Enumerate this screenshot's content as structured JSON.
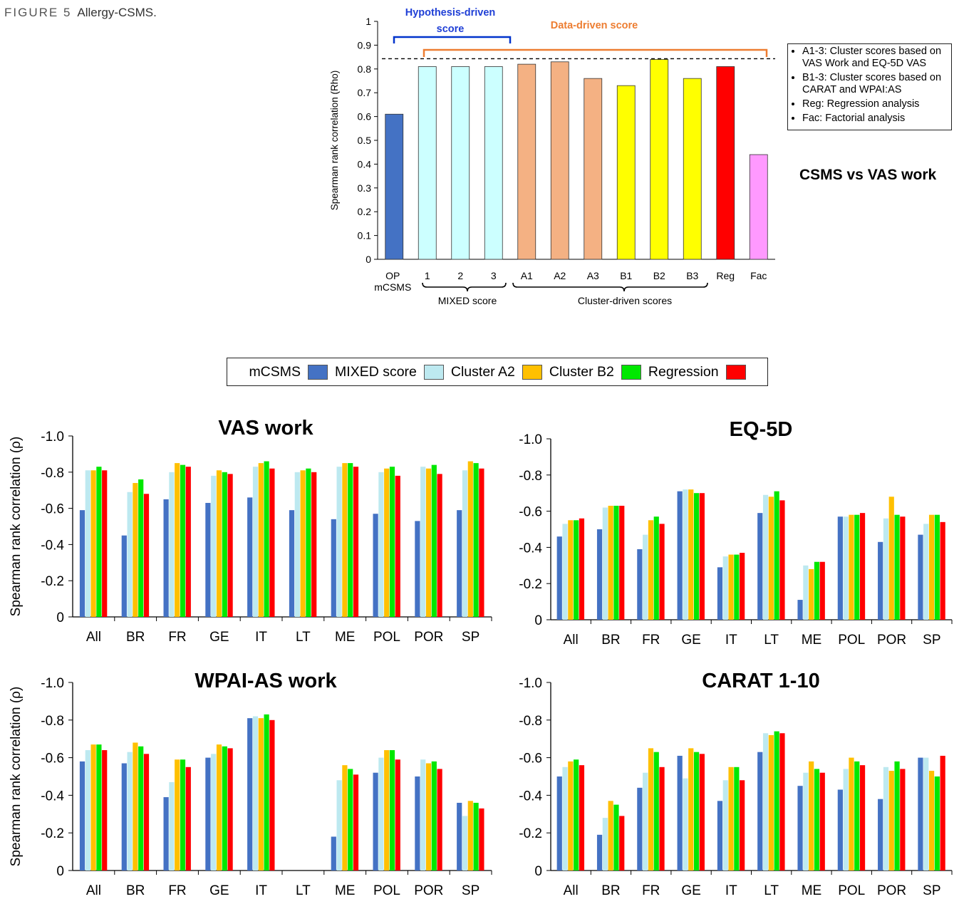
{
  "caption": {
    "label": "FIGURE 5",
    "text": "Allergy-CSMS."
  },
  "top_chart": {
    "ylabel": "Spearman rank correlation (Rho)",
    "yticks": [
      "0",
      "0.1",
      "0.2",
      "0.3",
      "0.4",
      "0.5",
      "0.6",
      "0.7",
      "0.8",
      "0.9",
      "1"
    ],
    "categories": [
      "OP\nmCSMS",
      "1",
      "2",
      "3",
      "A1",
      "A2",
      "A3",
      "B1",
      "B2",
      "B3",
      "Reg",
      "Fac"
    ],
    "values": [
      0.61,
      0.81,
      0.81,
      0.81,
      0.82,
      0.83,
      0.76,
      0.73,
      0.84,
      0.76,
      0.81,
      0.44
    ],
    "colors": [
      "#4472c4",
      "#ccffff",
      "#ccffff",
      "#ccffff",
      "#f4b183",
      "#f4b183",
      "#f4b183",
      "#ffff00",
      "#ffff00",
      "#ffff00",
      "#ff0000",
      "#ff99ff"
    ],
    "reference_line": 0.843,
    "hypothesis_label_line1": "Hypothesis-driven",
    "hypothesis_label_line2": "score",
    "data_label": "Data-driven score",
    "mixed_group_label": "MIXED score",
    "cluster_group_label": "Cluster-driven scores",
    "legend_items": [
      "A1-3: Cluster scores based on VAS Work and EQ-5D VAS",
      "B1-3: Cluster scores based on CARAT and WPAI:AS",
      "Reg: Regression analysis",
      "Fac: Factorial analysis"
    ],
    "subtitle": "CSMS vs VAS work"
  },
  "legend": {
    "items": [
      {
        "label": "mCSMS",
        "color": "#4472c4"
      },
      {
        "label": "MIXED score",
        "color": "#bde9f0"
      },
      {
        "label": "Cluster A2",
        "color": "#ffc000"
      },
      {
        "label": "Cluster B2",
        "color": "#00e800"
      },
      {
        "label": "Regression",
        "color": "#ff0000"
      }
    ]
  },
  "chart_data": [
    {
      "type": "bar",
      "title": "",
      "ylabel": "Spearman rank correlation (Rho)",
      "categories": [
        "OP mCSMS",
        "1",
        "2",
        "3",
        "A1",
        "A2",
        "A3",
        "B1",
        "B2",
        "B3",
        "Reg",
        "Fac"
      ],
      "values": [
        0.61,
        0.81,
        0.81,
        0.81,
        0.82,
        0.83,
        0.76,
        0.73,
        0.84,
        0.76,
        0.81,
        0.44
      ],
      "ylim": [
        0,
        1
      ]
    },
    {
      "type": "bar",
      "title": "VAS work",
      "ylabel": "Spearman rank correlation (ρ)",
      "categories": [
        "All",
        "BR",
        "FR",
        "GE",
        "IT",
        "LT",
        "ME",
        "POL",
        "POR",
        "SP"
      ],
      "ylim": [
        0,
        -1.0
      ],
      "yticks": [
        "0",
        "-0.2",
        "-0.4",
        "-0.6",
        "-0.8",
        "-1.0"
      ],
      "series": [
        {
          "name": "mCSMS",
          "values": [
            -0.59,
            -0.45,
            -0.65,
            -0.63,
            -0.66,
            -0.59,
            -0.54,
            -0.57,
            -0.53,
            -0.59
          ]
        },
        {
          "name": "MIXED score",
          "values": [
            -0.81,
            -0.69,
            -0.8,
            -0.78,
            -0.83,
            -0.8,
            -0.83,
            -0.8,
            -0.83,
            -0.81
          ]
        },
        {
          "name": "Cluster A2",
          "values": [
            -0.81,
            -0.74,
            -0.85,
            -0.81,
            -0.85,
            -0.81,
            -0.85,
            -0.82,
            -0.82,
            -0.86
          ]
        },
        {
          "name": "Cluster B2",
          "values": [
            -0.83,
            -0.76,
            -0.84,
            -0.8,
            -0.86,
            -0.82,
            -0.85,
            -0.83,
            -0.84,
            -0.85
          ]
        },
        {
          "name": "Regression",
          "values": [
            -0.81,
            -0.68,
            -0.83,
            -0.79,
            -0.82,
            -0.8,
            -0.83,
            -0.78,
            -0.79,
            -0.82
          ]
        }
      ]
    },
    {
      "type": "bar",
      "title": "EQ-5D",
      "ylabel": "",
      "categories": [
        "All",
        "BR",
        "FR",
        "GE",
        "IT",
        "LT",
        "ME",
        "POL",
        "POR",
        "SP"
      ],
      "ylim": [
        0,
        -1.0
      ],
      "yticks": [
        "0",
        "-0.2",
        "-0.4",
        "-0.6",
        "-0.8",
        "-1.0"
      ],
      "series": [
        {
          "name": "mCSMS",
          "values": [
            -0.46,
            -0.5,
            -0.39,
            -0.71,
            -0.29,
            -0.59,
            -0.11,
            -0.57,
            -0.43,
            -0.47
          ]
        },
        {
          "name": "MIXED score",
          "values": [
            -0.53,
            -0.62,
            -0.47,
            -0.72,
            -0.35,
            -0.69,
            -0.3,
            -0.57,
            -0.56,
            -0.53
          ]
        },
        {
          "name": "Cluster A2",
          "values": [
            -0.55,
            -0.63,
            -0.55,
            -0.72,
            -0.36,
            -0.68,
            -0.28,
            -0.58,
            -0.68,
            -0.58
          ]
        },
        {
          "name": "Cluster B2",
          "values": [
            -0.55,
            -0.63,
            -0.57,
            -0.7,
            -0.36,
            -0.71,
            -0.32,
            -0.58,
            -0.58,
            -0.58
          ]
        },
        {
          "name": "Regression",
          "values": [
            -0.56,
            -0.63,
            -0.53,
            -0.7,
            -0.37,
            -0.66,
            -0.32,
            -0.59,
            -0.57,
            -0.54
          ]
        }
      ]
    },
    {
      "type": "bar",
      "title": "WPAI-AS work",
      "ylabel": "Spearman rank correlation (ρ)",
      "categories": [
        "All",
        "BR",
        "FR",
        "GE",
        "IT",
        "LT",
        "ME",
        "POL",
        "POR",
        "SP"
      ],
      "ylim": [
        0,
        -1.0
      ],
      "yticks": [
        "0",
        "-0.2",
        "-0.4",
        "-0.6",
        "-0.8",
        "-1.0"
      ],
      "series": [
        {
          "name": "mCSMS",
          "values": [
            -0.58,
            -0.57,
            -0.39,
            -0.6,
            -0.81,
            null,
            -0.18,
            -0.52,
            -0.5,
            -0.36
          ]
        },
        {
          "name": "MIXED score",
          "values": [
            -0.64,
            -0.63,
            -0.47,
            -0.62,
            -0.82,
            null,
            -0.48,
            -0.6,
            -0.59,
            -0.29
          ]
        },
        {
          "name": "Cluster A2",
          "values": [
            -0.67,
            -0.68,
            -0.59,
            -0.67,
            -0.81,
            null,
            -0.56,
            -0.64,
            -0.57,
            -0.37
          ]
        },
        {
          "name": "Cluster B2",
          "values": [
            -0.67,
            -0.66,
            -0.59,
            -0.66,
            -0.83,
            null,
            -0.54,
            -0.64,
            -0.58,
            -0.36
          ]
        },
        {
          "name": "Regression",
          "values": [
            -0.64,
            -0.62,
            -0.55,
            -0.65,
            -0.8,
            null,
            -0.51,
            -0.59,
            -0.54,
            -0.33
          ]
        }
      ]
    },
    {
      "type": "bar",
      "title": "CARAT 1-10",
      "ylabel": "",
      "categories": [
        "All",
        "BR",
        "FR",
        "GE",
        "IT",
        "LT",
        "ME",
        "POL",
        "POR",
        "SP"
      ],
      "ylim": [
        0,
        -1.0
      ],
      "yticks": [
        "0",
        "-0.2",
        "-0.4",
        "-0.6",
        "-0.8",
        "-1.0"
      ],
      "series": [
        {
          "name": "mCSMS",
          "values": [
            -0.5,
            -0.19,
            -0.44,
            -0.61,
            -0.37,
            -0.63,
            -0.45,
            -0.43,
            -0.38,
            -0.6
          ]
        },
        {
          "name": "MIXED score",
          "values": [
            -0.55,
            -0.28,
            -0.52,
            -0.49,
            -0.48,
            -0.73,
            -0.52,
            -0.54,
            -0.55,
            -0.6
          ]
        },
        {
          "name": "Cluster A2",
          "values": [
            -0.58,
            -0.37,
            -0.65,
            -0.65,
            -0.55,
            -0.72,
            -0.58,
            -0.6,
            -0.53,
            -0.53
          ]
        },
        {
          "name": "Cluster B2",
          "values": [
            -0.59,
            -0.35,
            -0.63,
            -0.63,
            -0.55,
            -0.74,
            -0.54,
            -0.58,
            -0.58,
            -0.5
          ]
        },
        {
          "name": "Regression",
          "values": [
            -0.56,
            -0.29,
            -0.55,
            -0.62,
            -0.48,
            -0.73,
            -0.52,
            -0.56,
            -0.54,
            -0.61
          ]
        }
      ]
    }
  ]
}
